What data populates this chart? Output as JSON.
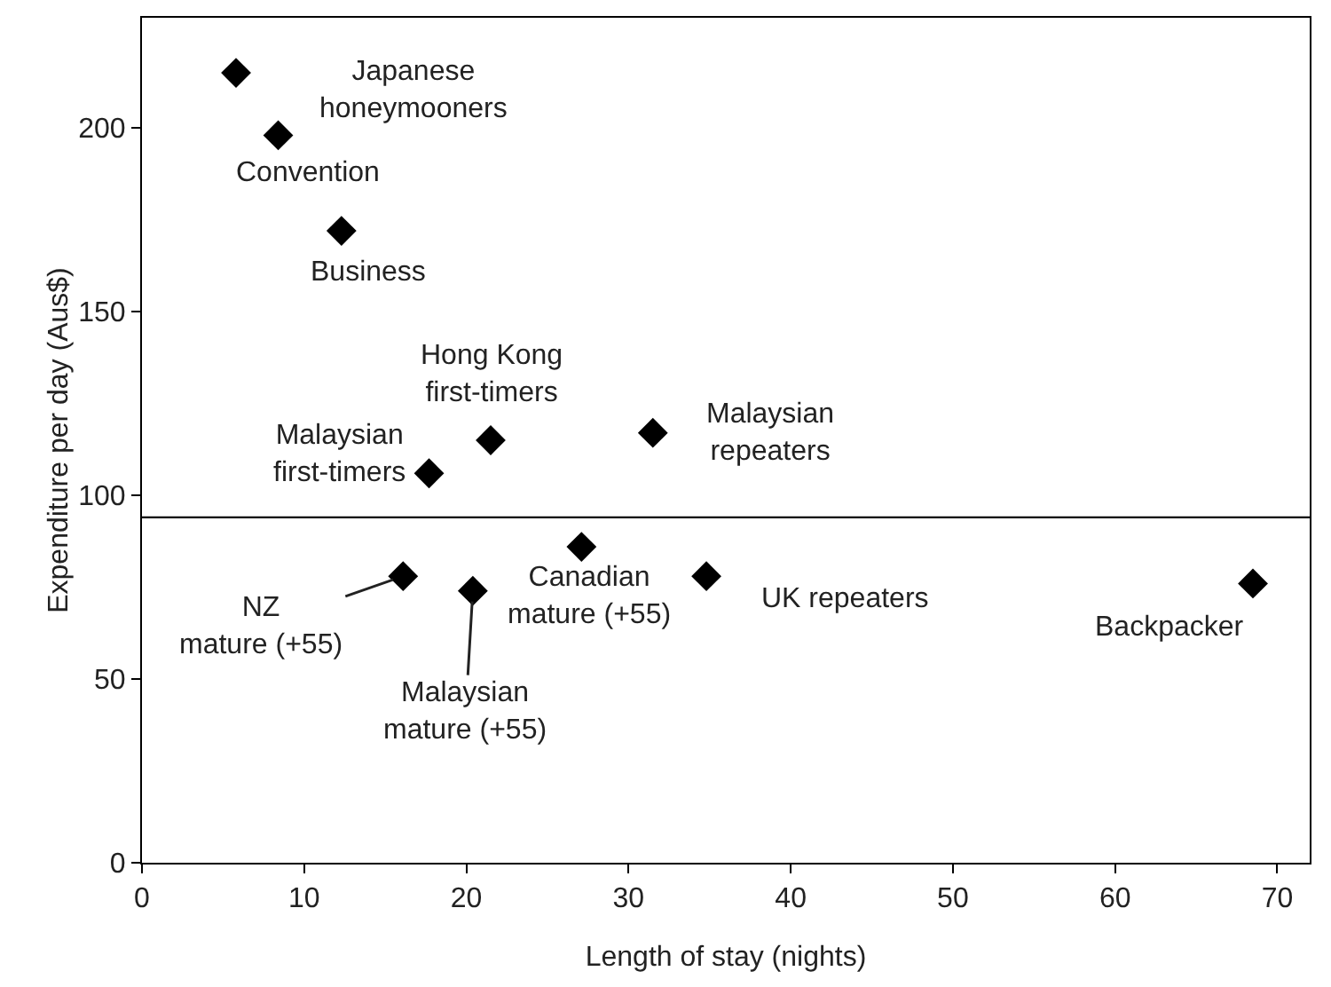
{
  "chart_data": {
    "type": "scatter",
    "xlabel": "Length of stay (nights)",
    "ylabel": "Expenditure per day (Aus$)",
    "x": [
      5.8,
      8.4,
      12.3,
      21.5,
      17.7,
      31.5,
      27.1,
      16.1,
      20.4,
      34.8,
      68.5
    ],
    "series": [
      {
        "color": "#000000",
        "values": [
          215,
          198,
          172,
          115,
          106,
          117,
          86,
          78,
          74,
          78,
          76
        ]
      }
    ],
    "annotations": [
      {
        "text": "Japanese\nhoneymooners",
        "x": 5.8,
        "y": 215
      },
      {
        "text": "Convention",
        "x": 8.4,
        "y": 198
      },
      {
        "text": "Business",
        "x": 12.3,
        "y": 172
      },
      {
        "text": "Hong Kong\nfirst-timers",
        "x": 21.5,
        "y": 115
      },
      {
        "text": "Malaysian\nfirst-timers",
        "x": 17.7,
        "y": 106
      },
      {
        "text": "Malaysian\nrepeaters",
        "x": 31.5,
        "y": 117
      },
      {
        "text": "Canadian\nmature (+55)",
        "x": 27.1,
        "y": 86
      },
      {
        "text": "NZ\nmature (+55)",
        "x": 16.1,
        "y": 78
      },
      {
        "text": "Malaysian\nmature (+55)",
        "x": 20.4,
        "y": 74
      },
      {
        "text": "UK repeaters",
        "x": 34.8,
        "y": 78
      },
      {
        "text": "Backpacker",
        "x": 68.5,
        "y": 76
      }
    ],
    "ref_lines": [
      {
        "axis": "y",
        "value": 94,
        "color": "#000000"
      }
    ],
    "xlim": [
      0,
      72
    ],
    "ylim": [
      0,
      230
    ],
    "xticks": [
      0,
      10,
      20,
      30,
      40,
      50,
      60,
      70
    ],
    "yticks": [
      0,
      50,
      100,
      150,
      200
    ],
    "marker": "diamond",
    "grid": false,
    "legend": false
  }
}
